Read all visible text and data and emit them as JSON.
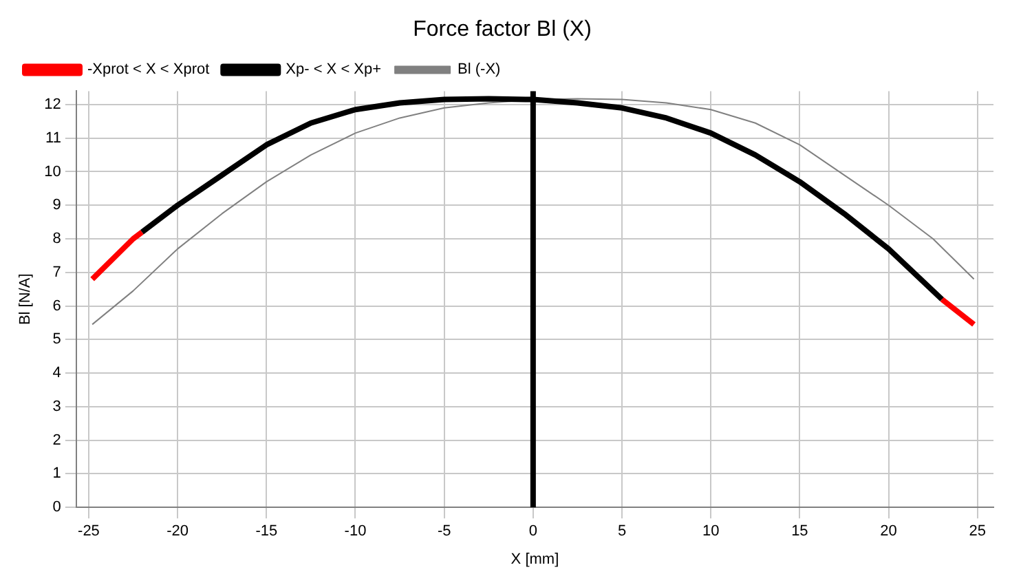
{
  "chart_data": {
    "type": "line",
    "title": "Force factor Bl (X)",
    "xlabel": "X [mm]",
    "ylabel": "Bl [N/A]",
    "series": [
      {
        "name": "-Xprot < X < Xprot",
        "color": "#ff0000",
        "x": [
          -24.8,
          -22.5,
          -22,
          0,
          23,
          24.8
        ],
        "values": [
          6.8,
          8.0,
          8.2,
          null,
          6.2,
          5.45
        ]
      },
      {
        "name": "Xp- < X < Xp+",
        "color": "#000000",
        "x": [
          -22,
          -20,
          -17.5,
          -15,
          -12.5,
          -10,
          -7.5,
          -5,
          -2.5,
          0,
          2.5,
          5,
          7.5,
          10,
          12.5,
          15,
          17.5,
          20,
          23
        ],
        "values": [
          8.2,
          9.0,
          9.9,
          10.8,
          11.45,
          11.85,
          12.05,
          12.15,
          12.17,
          12.15,
          12.05,
          11.9,
          11.6,
          11.15,
          10.5,
          9.7,
          8.75,
          7.7,
          6.2
        ]
      },
      {
        "name": "Bl (-X)",
        "color": "#808080",
        "x": [
          -24.8,
          -22.5,
          -20,
          -17.5,
          -15,
          -12.5,
          -10,
          -7.5,
          -5,
          -2.5,
          0,
          2.5,
          5,
          7.5,
          10,
          12.5,
          15,
          17.5,
          20,
          22.5,
          24.8
        ],
        "values": [
          5.45,
          6.45,
          7.7,
          8.75,
          9.7,
          10.5,
          11.15,
          11.6,
          11.9,
          12.05,
          12.15,
          12.17,
          12.15,
          12.05,
          11.85,
          11.45,
          10.8,
          9.9,
          9.0,
          8.0,
          6.8
        ]
      }
    ],
    "xlim": [
      -25.7,
      25.9
    ],
    "xticks": [
      -25,
      -20,
      -15,
      -10,
      -5,
      0,
      5,
      10,
      15,
      20,
      25
    ],
    "ylim": [
      0,
      12.4
    ],
    "yticks": [
      0,
      1,
      2,
      3,
      4,
      5,
      6,
      7,
      8,
      9,
      10,
      11,
      12
    ],
    "ref_lines": [
      {
        "axis": "x",
        "value": 0,
        "color": "#000000"
      }
    ],
    "grid": true,
    "legend": "top left",
    "marker": "none",
    "line_style": "solid"
  }
}
